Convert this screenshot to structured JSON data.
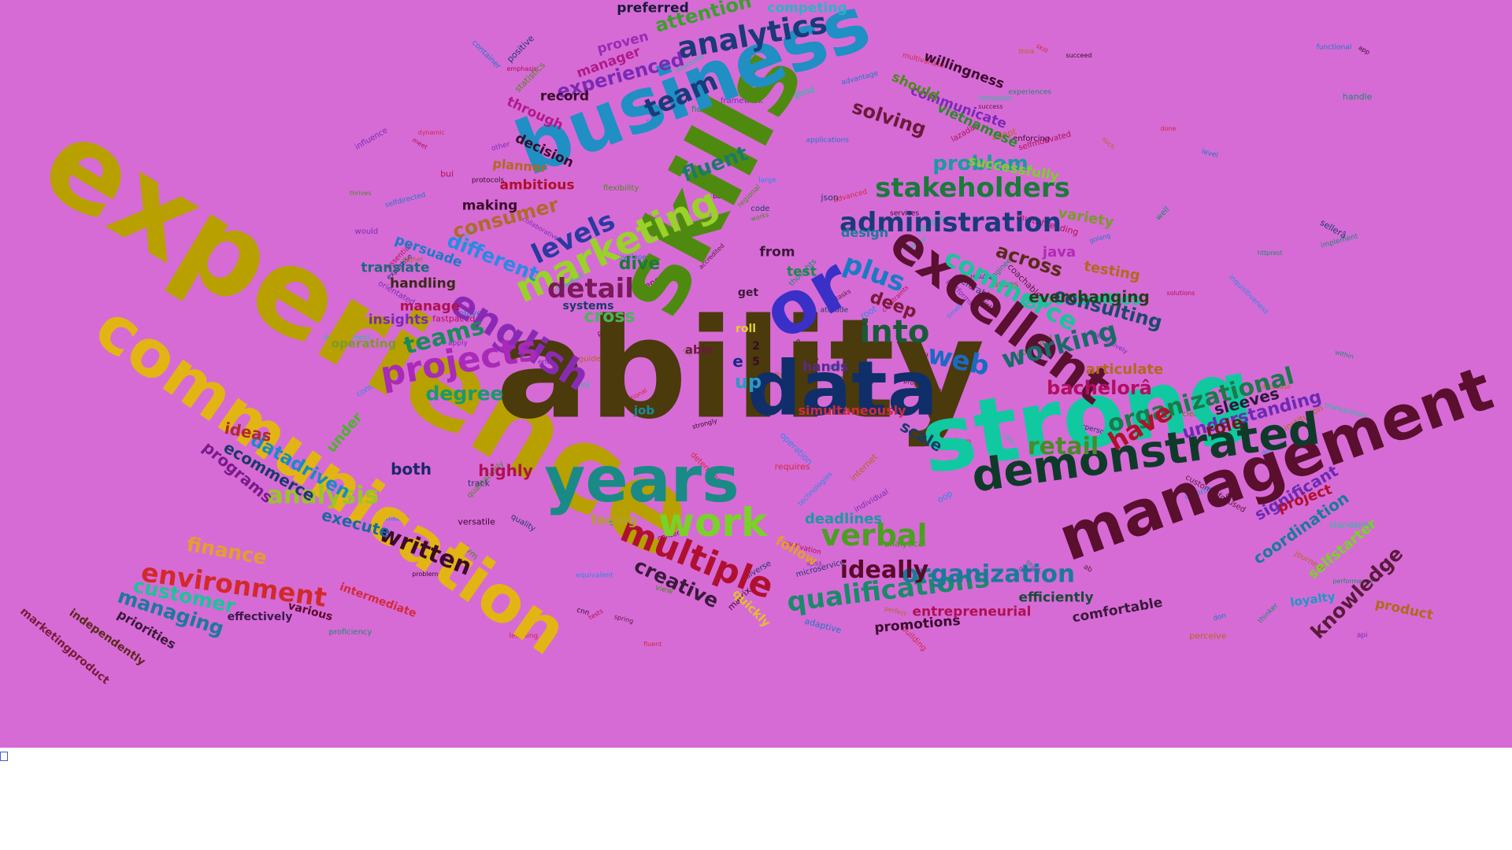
{
  "background_color": "#d66bd6",
  "words": [
    {
      "text": "experience",
      "color": "#b7a000"
    },
    {
      "text": "ability",
      "color": "#4a3a0c"
    },
    {
      "text": "skills",
      "color": "#4f8a10"
    },
    {
      "text": "business",
      "color": "#1f8fc4"
    },
    {
      "text": "communication",
      "color": "#e2b514"
    },
    {
      "text": "management",
      "color": "#5a0f2e"
    },
    {
      "text": "strong",
      "color": "#10c9a0"
    },
    {
      "text": "data",
      "color": "#0f2e6a"
    },
    {
      "text": "years",
      "color": "#1a8a86"
    },
    {
      "text": "or",
      "color": "#3a30c8"
    },
    {
      "text": "excellent",
      "color": "#5a1030"
    },
    {
      "text": "demonstrated",
      "color": "#0f3a2a"
    },
    {
      "text": "work",
      "color": "#7ad12a"
    },
    {
      "text": "multiple",
      "color": "#b01030"
    },
    {
      "text": "english",
      "color": "#8a2ab4"
    },
    {
      "text": "projects",
      "color": "#a92ab8"
    },
    {
      "text": "marketing",
      "color": "#9ad12a"
    },
    {
      "text": "stakeholders",
      "color": "#1a7a3a"
    },
    {
      "text": "administration",
      "color": "#1a3a7a"
    },
    {
      "text": "qualifications",
      "color": "#1a8a6a"
    },
    {
      "text": "organization",
      "color": "#1a7a9a"
    },
    {
      "text": "analytics",
      "color": "#1a3a7a"
    },
    {
      "text": "verbal",
      "color": "#4aa020"
    },
    {
      "text": "written",
      "color": "#3a0a2a"
    },
    {
      "text": "environment",
      "color": "#d12a2a"
    },
    {
      "text": "analysis",
      "color": "#9ac42a"
    },
    {
      "text": "organizational",
      "color": "#1a7a4a"
    },
    {
      "text": "commerce",
      "color": "#1ac49a"
    },
    {
      "text": "retail",
      "color": "#4a8a2a"
    },
    {
      "text": "working",
      "color": "#1a6a6a"
    },
    {
      "text": "team",
      "color": "#1a3a7a"
    },
    {
      "text": "into",
      "color": "#1a5a3a"
    },
    {
      "text": "plus",
      "color": "#1a7ac4"
    },
    {
      "text": "web",
      "color": "#1a6ac4"
    },
    {
      "text": "detail",
      "color": "#7a1a5a"
    },
    {
      "text": "levels",
      "color": "#2a3aa0"
    },
    {
      "text": "teams",
      "color": "#1a8a5a"
    },
    {
      "text": "ideally",
      "color": "#5a0a2a"
    },
    {
      "text": "creative",
      "color": "#3a1a3a"
    },
    {
      "text": "knowledge",
      "color": "#5a1a3a"
    },
    {
      "text": "have",
      "color": "#b0102a"
    },
    {
      "text": "bachelorâ",
      "color": "#b01060"
    },
    {
      "text": "customer",
      "color": "#1ac49a"
    },
    {
      "text": "managing",
      "color": "#1a7a9a"
    },
    {
      "text": "finance",
      "color": "#e2a02a"
    },
    {
      "text": "degree",
      "color": "#1a9a6a"
    },
    {
      "text": "different",
      "color": "#2a8ae2"
    },
    {
      "text": "consumer",
      "color": "#b06a2a"
    },
    {
      "text": "fluent",
      "color": "#1a7a6a"
    },
    {
      "text": "attention",
      "color": "#3aa02a"
    },
    {
      "text": "experienced",
      "color": "#7a2ab4"
    },
    {
      "text": "solving",
      "color": "#6a1a3a"
    },
    {
      "text": "problem",
      "color": "#1a9aa0"
    },
    {
      "text": "across",
      "color": "#5a2a1a"
    },
    {
      "text": "opportunities",
      "color": "#1ac49a"
    },
    {
      "text": "consulting",
      "color": "#1a4a6a"
    },
    {
      "text": "everchanging",
      "color": "#2a3a1a"
    },
    {
      "text": "java",
      "color": "#b02ab4"
    },
    {
      "text": "datadriven",
      "color": "#1a8ac4"
    },
    {
      "text": "ecommerce",
      "color": "#1a3a6a"
    },
    {
      "text": "programs",
      "color": "#7a1a8a"
    },
    {
      "text": "ideas",
      "color": "#b02a2a"
    },
    {
      "text": "both",
      "color": "#1a2a6a"
    },
    {
      "text": "execute",
      "color": "#1a6aa0"
    },
    {
      "text": "highly",
      "color": "#b01050"
    },
    {
      "text": "deadlines",
      "color": "#1a9aa0"
    },
    {
      "text": "promotions",
      "color": "#3a0a2a"
    },
    {
      "text": "entrepreneurial",
      "color": "#b01050"
    },
    {
      "text": "efficiently",
      "color": "#1a4a3a"
    },
    {
      "text": "comfortable",
      "color": "#3a1a3a"
    },
    {
      "text": "product",
      "color": "#b06a1a"
    },
    {
      "text": "understanding",
      "color": "#6a2ab4"
    },
    {
      "text": "sleeves",
      "color": "#2a1a3a"
    },
    {
      "text": "role",
      "color": "#6a1a1a"
    },
    {
      "text": "scale",
      "color": "#1a3a6a"
    },
    {
      "text": "significant",
      "color": "#6a2ab4"
    },
    {
      "text": "coordination",
      "color": "#1a7a9a"
    },
    {
      "text": "selfstarter",
      "color": "#7ad12a"
    },
    {
      "text": "loyalty",
      "color": "#1a9ac4"
    },
    {
      "text": "project",
      "color": "#b0102a"
    },
    {
      "text": "articulate",
      "color": "#b06a1a"
    },
    {
      "text": "testing",
      "color": "#b06a1a"
    },
    {
      "text": "variety",
      "color": "#7a9a2a"
    },
    {
      "text": "willingness",
      "color": "#3a0a2a"
    },
    {
      "text": "vietnamese",
      "color": "#2a8a2a"
    },
    {
      "text": "successfully",
      "color": "#7ad12a"
    },
    {
      "text": "communicate",
      "color": "#7a2ab4"
    },
    {
      "text": "should",
      "color": "#4a8a1a"
    },
    {
      "text": "competing",
      "color": "#2ab4c4"
    },
    {
      "text": "preferred",
      "color": "#1a1a3a"
    },
    {
      "text": "manager",
      "color": "#b01a8a"
    },
    {
      "text": "proven",
      "color": "#9a2ab4"
    },
    {
      "text": "record",
      "color": "#3a0a2a"
    },
    {
      "text": "through",
      "color": "#b01a8a"
    },
    {
      "text": "decision",
      "color": "#3a0a2a"
    },
    {
      "text": "planner",
      "color": "#b06a1a"
    },
    {
      "text": "ambitious",
      "color": "#b0102a"
    },
    {
      "text": "making",
      "color": "#3a0a2a"
    },
    {
      "text": "translate",
      "color": "#1a6a7a"
    },
    {
      "text": "persuade",
      "color": "#1a7ac4"
    },
    {
      "text": "handling",
      "color": "#3a2a1a"
    },
    {
      "text": "manage",
      "color": "#b01050"
    },
    {
      "text": "insights",
      "color": "#7a2ab4"
    },
    {
      "text": "operating",
      "color": "#7a9a2a"
    },
    {
      "text": "dive",
      "color": "#1a7a3a"
    },
    {
      "text": "cross",
      "color": "#4ab45a"
    },
    {
      "text": "systems",
      "color": "#1a3a6a"
    },
    {
      "text": "deep",
      "color": "#7a1a3a"
    },
    {
      "text": "from",
      "color": "#3a1a3a"
    },
    {
      "text": "test",
      "color": "#1a8a4a"
    },
    {
      "text": "design",
      "color": "#1a7a9a"
    },
    {
      "text": "hands",
      "color": "#5a2a8a"
    },
    {
      "text": "job",
      "color": "#1a8a9a"
    },
    {
      "text": "able",
      "color": "#6a1a3a"
    },
    {
      "text": "under",
      "color": "#4ab42a"
    },
    {
      "text": "facing",
      "color": "#b0a02a"
    },
    {
      "text": "follow",
      "color": "#e2a02a"
    },
    {
      "text": "quickly",
      "color": "#e2c02a"
    },
    {
      "text": "intermediate",
      "color": "#d12a3a"
    },
    {
      "text": "various",
      "color": "#5a0a2a"
    },
    {
      "text": "effectively",
      "color": "#3a1a4a"
    },
    {
      "text": "priorities",
      "color": "#3a1a3a"
    },
    {
      "text": "independently",
      "color": "#5a2a1a"
    },
    {
      "text": "marketingproduct",
      "color": "#7a1a3a"
    },
    {
      "text": "simultaneously",
      "color": "#d12a3a"
    },
    {
      "text": "roll",
      "color": "#e2d02a"
    },
    {
      "text": "get",
      "color": "#3a1a3a"
    },
    {
      "text": "up",
      "color": "#2a9ac4"
    },
    {
      "text": "e",
      "color": "#1a2a8a"
    },
    {
      "text": "5",
      "color": "#3a0a2a"
    },
    {
      "text": "2",
      "color": "#3a0a2a"
    },
    {
      "text": "â",
      "color": "#b01050"
    }
  ],
  "small_words": [
    "sometimes",
    "proactive",
    "platforms",
    "experiences",
    "selfmotivated",
    "statistics",
    "player",
    "software",
    "learning",
    "smaster",
    "accredited",
    "equivalent",
    "preferably",
    "protocols",
    "orientated",
    "implement",
    "motivation",
    "flexibility",
    "architecture",
    "journeys",
    "multivariate",
    "manual",
    "spring",
    "timely",
    "microservice",
    "versatile",
    "influence",
    "sense",
    "emphasis",
    "analytical",
    "advantage",
    "higher",
    "done",
    "computer",
    "tasks",
    "technologies",
    "interpersonal",
    "problems",
    "collaborative",
    "thoughts",
    "constraints",
    "culturally",
    "adaptive",
    "internet",
    "building",
    "good",
    "coachable",
    "root",
    "expertise",
    "enforcing",
    "energetic",
    "within",
    "upper",
    "view",
    "level",
    "database",
    "advanced",
    "structures",
    "independent",
    "large",
    "track",
    "services",
    "quantitatively",
    "thinker",
    "solutions",
    "qualitatively",
    "developers",
    "institution",
    "relational",
    "transactions",
    "programming",
    "algorithms",
    "results",
    "matrix",
    "spss",
    "httprest",
    "essential",
    "science",
    "applications",
    "guidelines",
    "platform",
    "development",
    "success",
    "operation",
    "positive",
    "them",
    "would",
    "engineer",
    "lazadaâ",
    "thrives",
    "selfdirected",
    "perfect",
    "dynamic",
    "mass",
    "content",
    "docker",
    "json",
    "cycle",
    "apply",
    "team",
    "fastpaced",
    "works",
    "golang",
    "leading",
    "requires",
    "standards",
    "reporting",
    "inquisitiveness",
    "quality",
    "strongly",
    "framework",
    "proficiency",
    "tests",
    "issues",
    "container",
    "think",
    "fluent",
    "tool",
    "patterns",
    "commercial",
    "sellerâ",
    "succeed",
    "individual",
    "performance",
    "multithreading",
    "regional",
    "functional",
    "perceive",
    "determine",
    "flexible",
    "customerfocused",
    "scalable",
    "attitude",
    "basic",
    "other",
    "field",
    "meet",
    "rpc",
    "don",
    "adept",
    "ops",
    "core",
    "ab",
    "oop",
    "diverse",
    "app",
    "api",
    "well",
    "bui",
    "jvm",
    "self",
    "such",
    "skill",
    "new",
    "all",
    "set",
    "code",
    "cnn",
    "03year",
    "handle"
  ]
}
